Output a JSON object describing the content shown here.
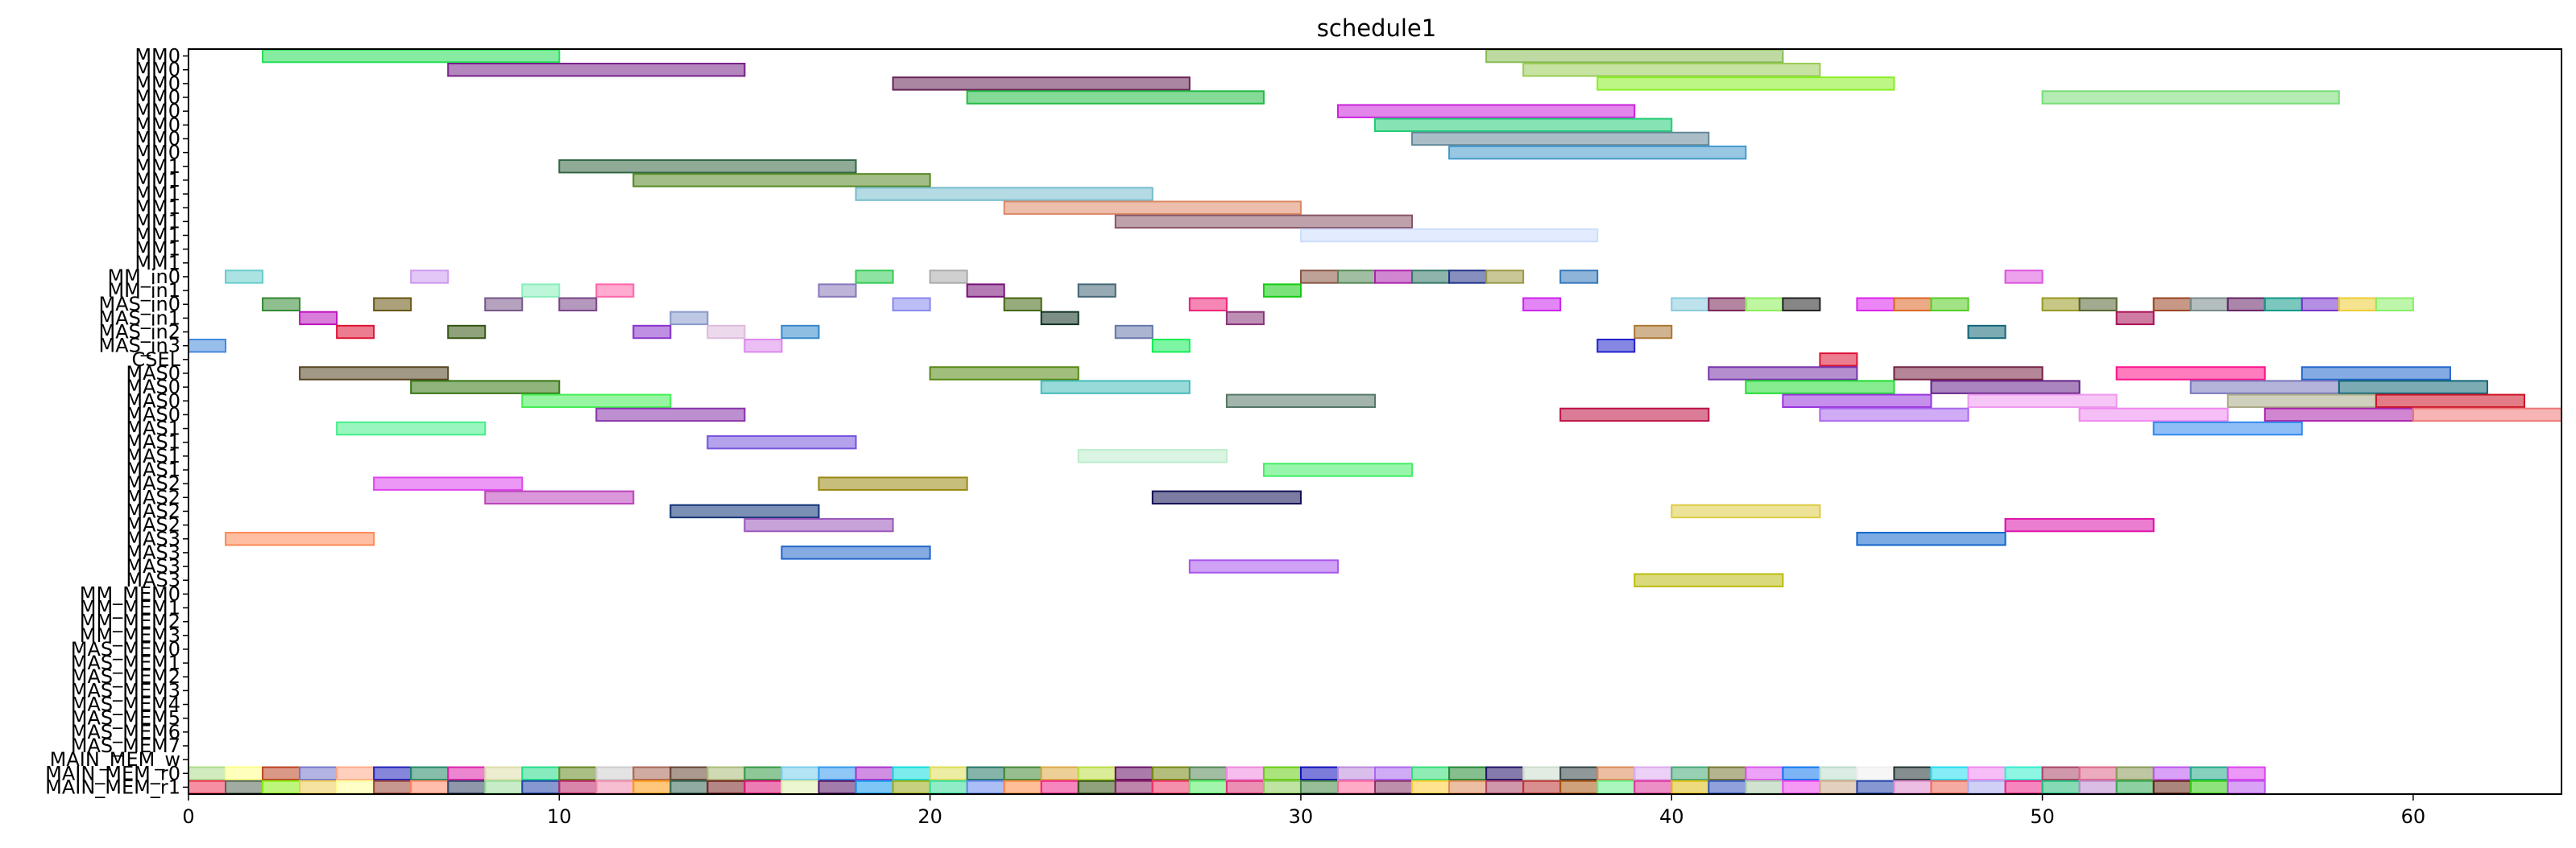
{
  "chart_data": {
    "type": "gantt",
    "title": "schedule1",
    "xlim": [
      0,
      64
    ],
    "x_ticks": [
      0,
      10,
      20,
      30,
      40,
      50,
      60
    ],
    "rows": [
      "MM0",
      "MM0",
      "MM0",
      "MM0",
      "MM0",
      "MM0",
      "MM0",
      "MM0",
      "MM1",
      "MM1",
      "MM1",
      "MM1",
      "MM1",
      "MM1",
      "MM1",
      "MM1",
      "MM_in0",
      "MM_in1",
      "MAS_in0",
      "MAS_in1",
      "MAS_in2",
      "MAS_in3",
      "CSEL",
      "MAS0",
      "MAS0",
      "MAS0",
      "MAS0",
      "MAS1",
      "MAS1",
      "MAS1",
      "MAS1",
      "MAS2",
      "MAS2",
      "MAS2",
      "MAS2",
      "MAS3",
      "MAS3",
      "MAS3",
      "MAS3",
      "MM_MEM0",
      "MM_MEM1",
      "MM_MEM2",
      "MM_MEM3",
      "MAS_MEM0",
      "MAS_MEM1",
      "MAS_MEM2",
      "MAS_MEM3",
      "MAS_MEM4",
      "MAS_MEM5",
      "MAS_MEM6",
      "MAS_MEM7",
      "MAIN_MEM_w",
      "MAIN_MEM_r0",
      "MAIN_MEM_r1"
    ],
    "bars": [
      {
        "row": 0,
        "start": 2,
        "end": 10,
        "color": "#22dd55"
      },
      {
        "row": 0,
        "start": 35,
        "end": 43,
        "color": "#88bb55"
      },
      {
        "row": 1,
        "start": 7,
        "end": 15,
        "color": "#772288"
      },
      {
        "row": 1,
        "start": 36,
        "end": 44,
        "color": "#99cc55"
      },
      {
        "row": 2,
        "start": 19,
        "end": 27,
        "color": "#662255"
      },
      {
        "row": 2,
        "start": 38,
        "end": 46,
        "color": "#88ee22"
      },
      {
        "row": 3,
        "start": 21,
        "end": 29,
        "color": "#22bb44"
      },
      {
        "row": 3,
        "start": 50,
        "end": 58,
        "color": "#77dd77"
      },
      {
        "row": 4,
        "start": 31,
        "end": 39,
        "color": "#cc22dd"
      },
      {
        "row": 5,
        "start": 32,
        "end": 40,
        "color": "#22cc77"
      },
      {
        "row": 6,
        "start": 33,
        "end": 41,
        "color": "#668899"
      },
      {
        "row": 7,
        "start": 34,
        "end": 42,
        "color": "#4499cc"
      },
      {
        "row": 8,
        "start": 10,
        "end": 18,
        "color": "#336644"
      },
      {
        "row": 9,
        "start": 12,
        "end": 20,
        "color": "#558822"
      },
      {
        "row": 10,
        "start": 18,
        "end": 26,
        "color": "#77bbcc"
      },
      {
        "row": 11,
        "start": 22,
        "end": 30,
        "color": "#dd8866"
      },
      {
        "row": 12,
        "start": 25,
        "end": 33,
        "color": "#885566"
      },
      {
        "row": 13,
        "start": 30,
        "end": 38,
        "color": "#ccddff"
      },
      {
        "row": 16,
        "start": 1,
        "end": 2,
        "color": "#66cccc"
      },
      {
        "row": 16,
        "start": 6,
        "end": 7,
        "color": "#cc99ee"
      },
      {
        "row": 16,
        "start": 18,
        "end": 19,
        "color": "#33cc55"
      },
      {
        "row": 16,
        "start": 20,
        "end": 21,
        "color": "#aaaaaa"
      },
      {
        "row": 16,
        "start": 30,
        "end": 31,
        "color": "#885544"
      },
      {
        "row": 16,
        "start": 31,
        "end": 32,
        "color": "#558855"
      },
      {
        "row": 16,
        "start": 32,
        "end": 33,
        "color": "#aa22aa"
      },
      {
        "row": 16,
        "start": 33,
        "end": 34,
        "color": "#337766"
      },
      {
        "row": 16,
        "start": 34,
        "end": 35,
        "color": "#223388"
      },
      {
        "row": 16,
        "start": 35,
        "end": 36,
        "color": "#999944"
      },
      {
        "row": 16,
        "start": 37,
        "end": 38,
        "color": "#3377bb"
      },
      {
        "row": 16,
        "start": 49,
        "end": 50,
        "color": "#dd55dd"
      },
      {
        "row": 17,
        "start": 9,
        "end": 10,
        "color": "#88eebb"
      },
      {
        "row": 17,
        "start": 11,
        "end": 12,
        "color": "#ff66aa"
      },
      {
        "row": 17,
        "start": 17,
        "end": 18,
        "color": "#8877bb"
      },
      {
        "row": 17,
        "start": 21,
        "end": 22,
        "color": "#771177"
      },
      {
        "row": 17,
        "start": 24,
        "end": 25,
        "color": "#446677"
      },
      {
        "row": 17,
        "start": 29,
        "end": 30,
        "color": "#11cc11"
      },
      {
        "row": 18,
        "start": 2,
        "end": 3,
        "color": "#338833"
      },
      {
        "row": 18,
        "start": 5,
        "end": 6,
        "color": "#665511"
      },
      {
        "row": 18,
        "start": 8,
        "end": 9,
        "color": "#775588"
      },
      {
        "row": 18,
        "start": 10,
        "end": 11,
        "color": "#774488"
      },
      {
        "row": 18,
        "start": 19,
        "end": 20,
        "color": "#8888ee"
      },
      {
        "row": 18,
        "start": 22,
        "end": 23,
        "color": "#446611"
      },
      {
        "row": 18,
        "start": 27,
        "end": 28,
        "color": "#ee2277"
      },
      {
        "row": 18,
        "start": 36,
        "end": 37,
        "color": "#cc22ee"
      },
      {
        "row": 18,
        "start": 40,
        "end": 41,
        "color": "#88ccdd"
      },
      {
        "row": 18,
        "start": 41,
        "end": 42,
        "color": "#772255"
      },
      {
        "row": 18,
        "start": 42,
        "end": 43,
        "color": "#88ee55"
      },
      {
        "row": 18,
        "start": 43,
        "end": 44,
        "color": "#222222"
      },
      {
        "row": 18,
        "start": 45,
        "end": 46,
        "color": "#dd22ee"
      },
      {
        "row": 18,
        "start": 46,
        "end": 47,
        "color": "#dd6622"
      },
      {
        "row": 18,
        "start": 47,
        "end": 48,
        "color": "#55cc22"
      },
      {
        "row": 18,
        "start": 50,
        "end": 51,
        "color": "#999922"
      },
      {
        "row": 18,
        "start": 51,
        "end": 52,
        "color": "#556633"
      },
      {
        "row": 18,
        "start": 53,
        "end": 54,
        "color": "#994422"
      },
      {
        "row": 18,
        "start": 54,
        "end": 55,
        "color": "#778888"
      },
      {
        "row": 18,
        "start": 55,
        "end": 56,
        "color": "#662266"
      },
      {
        "row": 18,
        "start": 56,
        "end": 57,
        "color": "#119988"
      },
      {
        "row": 18,
        "start": 57,
        "end": 58,
        "color": "#7733cc"
      },
      {
        "row": 18,
        "start": 58,
        "end": 59,
        "color": "#eecc33"
      },
      {
        "row": 18,
        "start": 59,
        "end": 60,
        "color": "#88ee66"
      },
      {
        "row": 19,
        "start": 3,
        "end": 4,
        "color": "#bb11bb"
      },
      {
        "row": 19,
        "start": 13,
        "end": 14,
        "color": "#8899cc"
      },
      {
        "row": 19,
        "start": 23,
        "end": 24,
        "color": "#113322"
      },
      {
        "row": 19,
        "start": 28,
        "end": 29,
        "color": "#883377"
      },
      {
        "row": 19,
        "start": 52,
        "end": 53,
        "color": "#aa1155"
      },
      {
        "row": 20,
        "start": 4,
        "end": 5,
        "color": "#dd1133"
      },
      {
        "row": 20,
        "start": 7,
        "end": 8,
        "color": "#335511"
      },
      {
        "row": 20,
        "start": 12,
        "end": 13,
        "color": "#8833cc"
      },
      {
        "row": 20,
        "start": 14,
        "end": 15,
        "color": "#ddbbdd"
      },
      {
        "row": 20,
        "start": 16,
        "end": 17,
        "color": "#3388cc"
      },
      {
        "row": 20,
        "start": 25,
        "end": 26,
        "color": "#6677aa"
      },
      {
        "row": 20,
        "start": 39,
        "end": 40,
        "color": "#aa7733"
      },
      {
        "row": 20,
        "start": 48,
        "end": 49,
        "color": "#116677"
      },
      {
        "row": 21,
        "start": 0,
        "end": 1,
        "color": "#4488dd"
      },
      {
        "row": 21,
        "start": 15,
        "end": 16,
        "color": "#dd88ee"
      },
      {
        "row": 21,
        "start": 26,
        "end": 27,
        "color": "#11ee55"
      },
      {
        "row": 21,
        "start": 38,
        "end": 39,
        "color": "#2222cc"
      },
      {
        "row": 22,
        "start": 44,
        "end": 45,
        "color": "#dd1133"
      },
      {
        "row": 23,
        "start": 3,
        "end": 7,
        "color": "#554422"
      },
      {
        "row": 23,
        "start": 20,
        "end": 24,
        "color": "#558811"
      },
      {
        "row": 23,
        "start": 41,
        "end": 45,
        "color": "#7733aa"
      },
      {
        "row": 23,
        "start": 46,
        "end": 50,
        "color": "#772244"
      },
      {
        "row": 23,
        "start": 52,
        "end": 56,
        "color": "#ff1188"
      },
      {
        "row": 23,
        "start": 57,
        "end": 61,
        "color": "#2266cc"
      },
      {
        "row": 24,
        "start": 6,
        "end": 10,
        "color": "#337711"
      },
      {
        "row": 24,
        "start": 23,
        "end": 27,
        "color": "#44bbbb"
      },
      {
        "row": 24,
        "start": 42,
        "end": 46,
        "color": "#22dd33"
      },
      {
        "row": 24,
        "start": 47,
        "end": 51,
        "color": "#662288"
      },
      {
        "row": 24,
        "start": 54,
        "end": 58,
        "color": "#7777bb"
      },
      {
        "row": 24,
        "start": 58,
        "end": 62,
        "color": "#116677"
      },
      {
        "row": 25,
        "start": 9,
        "end": 13,
        "color": "#44ee55"
      },
      {
        "row": 25,
        "start": 28,
        "end": 32,
        "color": "#557766"
      },
      {
        "row": 25,
        "start": 43,
        "end": 47,
        "color": "#9933dd"
      },
      {
        "row": 25,
        "start": 48,
        "end": 52,
        "color": "#ee99ee"
      },
      {
        "row": 25,
        "start": 55,
        "end": 59,
        "color": "#aaaa88"
      },
      {
        "row": 25,
        "start": 59,
        "end": 63,
        "color": "#cc1122"
      },
      {
        "row": 26,
        "start": 11,
        "end": 15,
        "color": "#8833aa"
      },
      {
        "row": 26,
        "start": 37,
        "end": 41,
        "color": "#bb1144"
      },
      {
        "row": 26,
        "start": 44,
        "end": 48,
        "color": "#aa66ee"
      },
      {
        "row": 26,
        "start": 51,
        "end": 55,
        "color": "#ee88ee"
      },
      {
        "row": 26,
        "start": 56,
        "end": 60,
        "color": "#aa22aa"
      },
      {
        "row": 26,
        "start": 60,
        "end": 64,
        "color": "#ee7777"
      },
      {
        "row": 27,
        "start": 4,
        "end": 8,
        "color": "#44ee88"
      },
      {
        "row": 27,
        "start": 53,
        "end": 57,
        "color": "#3388ee"
      },
      {
        "row": 28,
        "start": 14,
        "end": 18,
        "color": "#7755dd"
      },
      {
        "row": 29,
        "start": 24,
        "end": 28,
        "color": "#bbeecc"
      },
      {
        "row": 30,
        "start": 29,
        "end": 33,
        "color": "#44ee66"
      },
      {
        "row": 31,
        "start": 5,
        "end": 9,
        "color": "#dd44ee"
      },
      {
        "row": 31,
        "start": 17,
        "end": 21,
        "color": "#998811"
      },
      {
        "row": 32,
        "start": 8,
        "end": 12,
        "color": "#bb44bb"
      },
      {
        "row": 32,
        "start": 26,
        "end": 30,
        "color": "#111155"
      },
      {
        "row": 33,
        "start": 13,
        "end": 17,
        "color": "#113377"
      },
      {
        "row": 33,
        "start": 40,
        "end": 44,
        "color": "#ddcc44"
      },
      {
        "row": 34,
        "start": 15,
        "end": 19,
        "color": "#9955bb"
      },
      {
        "row": 34,
        "start": 49,
        "end": 53,
        "color": "#dd11aa"
      },
      {
        "row": 35,
        "start": 1,
        "end": 5,
        "color": "#ff8855"
      },
      {
        "row": 35,
        "start": 45,
        "end": 49,
        "color": "#1166cc"
      },
      {
        "row": 36,
        "start": 16,
        "end": 20,
        "color": "#2266cc"
      },
      {
        "row": 37,
        "start": 27,
        "end": 31,
        "color": "#aa55ee"
      },
      {
        "row": 38,
        "start": 39,
        "end": 43,
        "color": "#bbbb11"
      }
    ],
    "mem_rows": [
      {
        "row": 52,
        "colors": [
          "#aadd88",
          "#ffff88",
          "#bb4422",
          "#7777cc",
          "#ffaa88",
          "#2222bb",
          "#228866",
          "#dd22aa",
          "#ddddaa",
          "#22dd88",
          "#668822",
          "#cccccc",
          "#aa6655",
          "#664433",
          "#aabb77",
          "#339944",
          "#77ccee",
          "#3399ee",
          "#aa33cc",
          "#11dddd",
          "#dddd55",
          "#227766",
          "#448833",
          "#ddaa44",
          "#bbdd44",
          "#661166",
          "#778811",
          "#558855",
          "#ee88dd",
          "#66cc11",
          "#1111bb",
          "#bb88dd",
          "#aa66ee",
          "#33dd77",
          "#228833",
          "#221166",
          "#ccddcc",
          "#334444",
          "#dd8855",
          "#ddaaee",
          "#44aa77",
          "#777733",
          "#dd55ee",
          "#1177ee",
          "#bbddcc",
          "#eeeeee",
          "#223333",
          "#22ddee",
          "#ee88ee",
          "#33eecc",
          "#aa4466",
          "#dd6688",
          "#889955",
          "#bb55ee",
          "#22aa88",
          "#dd44ee"
        ]
      },
      {
        "row": 53,
        "colors": [
          "#ee3355",
          "#556655",
          "#88ee11",
          "#eecc55",
          "#ffff99",
          "#994433",
          "#ff8866",
          "#334466",
          "#99dd99",
          "#2244aa",
          "#bb2266",
          "#ee88aa",
          "#ff9911",
          "#336655",
          "#772222",
          "#dd1177",
          "#ddeeaa",
          "#551166",
          "#1199ee",
          "#99aa11",
          "#33dd99",
          "#6688ee",
          "#ff8844",
          "#ee2288",
          "#335511",
          "#882266",
          "#ee3366",
          "#55ee66",
          "#dd3377",
          "#88cc55",
          "#448844",
          "#ff6699",
          "#883366",
          "#ffcc33",
          "#dd8855",
          "#aa4466",
          "#bb3333",
          "#aa5511",
          "#66ee88",
          "#dd3399",
          "#ddbb11",
          "#3355bb",
          "#aaccaa",
          "#ee44ee",
          "#ccaa88",
          "#2244aa",
          "#dd88cc",
          "#ee6655",
          "#aaaaee",
          "#ee2288",
          "#22bb77",
          "#bb88cc",
          "#33aa55",
          "#662211",
          "#33cc11",
          "#bb55ee"
        ]
      }
    ]
  }
}
